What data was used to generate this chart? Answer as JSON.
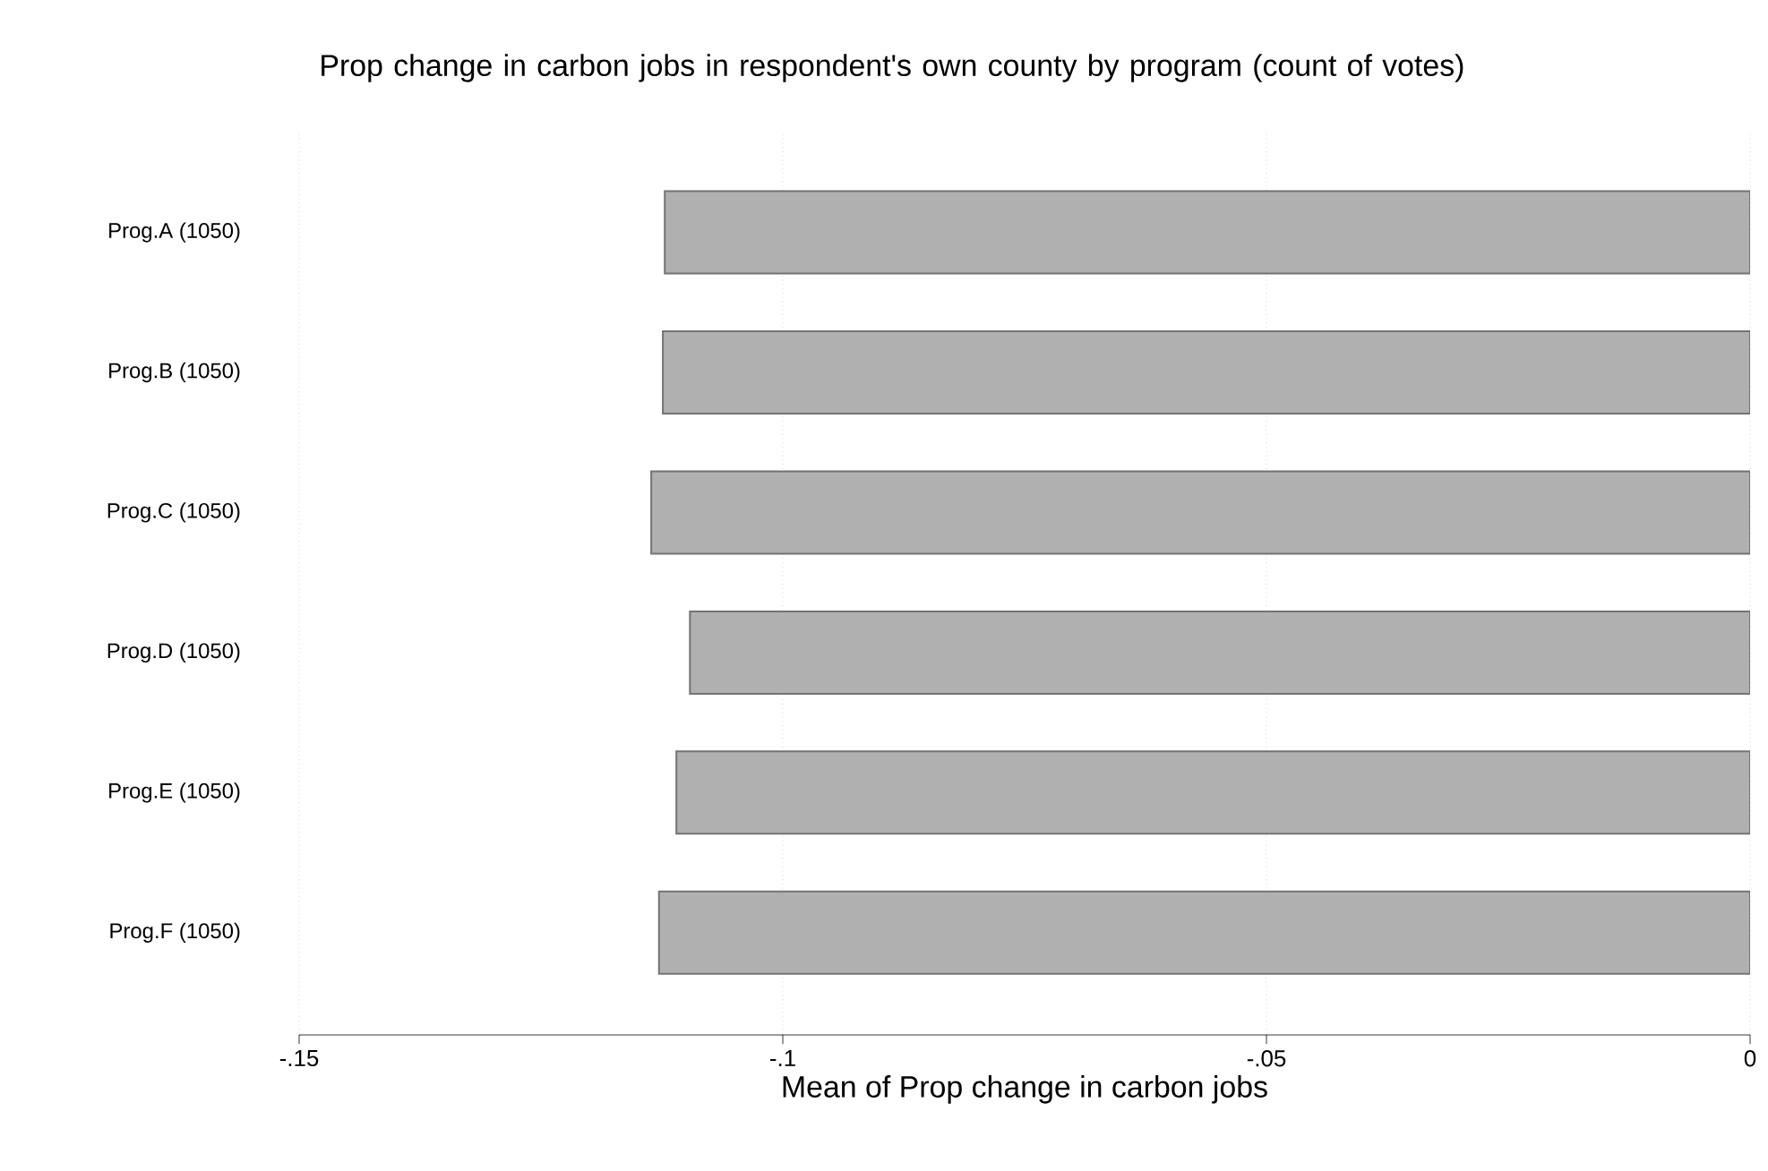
{
  "chart_data": {
    "type": "bar",
    "orientation": "horizontal",
    "title": "Prop change in carbon jobs in respondent's own county by program (count of votes)",
    "xlabel": "Mean of Prop change in carbon jobs",
    "categories": [
      "Prog.A (1050)",
      "Prog.B (1050)",
      "Prog.C (1050)",
      "Prog.D (1050)",
      "Prog.E (1050)",
      "Prog.F (1050)"
    ],
    "values": [
      -0.1122,
      -0.1124,
      -0.1136,
      -0.1096,
      -0.111,
      -0.1128
    ],
    "color": "#b0b0b0",
    "xlim": [
      -0.15,
      0
    ],
    "xticks": [
      {
        "value": -0.15,
        "label": "-.15"
      },
      {
        "value": -0.1,
        "label": "-.1"
      },
      {
        "value": -0.05,
        "label": "-.05"
      },
      0
    ],
    "grid": "x"
  }
}
